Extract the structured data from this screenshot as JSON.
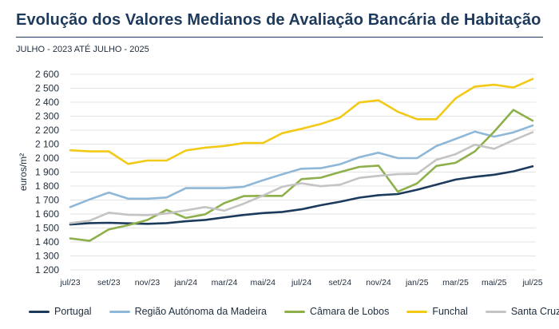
{
  "title": "Evolução dos Valores Medianos de Avaliação Bancária de Habitação",
  "subtitle": "JULHO - 2023 ATÉ JULHO - 2025",
  "chart_data": {
    "type": "line",
    "title": "Evolução dos Valores Medianos de Avaliação Bancária de Habitação",
    "subtitle": "JULHO - 2023 ATÉ JULHO - 2025",
    "xlabel": "",
    "ylabel": "euros/m²",
    "ylim": [
      1200,
      2600
    ],
    "yticks": [
      1200,
      1300,
      1400,
      1500,
      1600,
      1700,
      1800,
      1900,
      2000,
      2100,
      2200,
      2300,
      2400,
      2500,
      2600
    ],
    "ytick_labels": [
      "1 200",
      "1 300",
      "1 400",
      "1 500",
      "1 600",
      "1 700",
      "1 800",
      "1 900",
      "2 000",
      "2 100",
      "2 200",
      "2 300",
      "2 400",
      "2 500",
      "2 600"
    ],
    "grid": true,
    "legend": "bottom",
    "categories": [
      "jul/23",
      "ago/23",
      "set/23",
      "out/23",
      "nov/23",
      "dez/23",
      "jan/24",
      "fev/24",
      "mar/24",
      "abr/24",
      "mai/24",
      "jun/24",
      "jul/24",
      "ago/24",
      "set/24",
      "out/24",
      "nov/24",
      "dez/24",
      "jan/25",
      "fev/25",
      "mar/25",
      "abr/25",
      "mai/25",
      "jun/25",
      "jul/25"
    ],
    "xtick_labels": [
      "jul/23",
      "",
      "set/23",
      "",
      "nov/23",
      "",
      "jan/24",
      "",
      "mar/24",
      "",
      "mai/24",
      "",
      "jul/24",
      "",
      "set/24",
      "",
      "nov/24",
      "",
      "jan/25",
      "",
      "mar/25",
      "",
      "mai/25",
      "",
      "jul/25"
    ],
    "series": [
      {
        "name": "Portugal",
        "color": "#1b3a5c",
        "values": [
          1525,
          1535,
          1537,
          1533,
          1530,
          1535,
          1548,
          1558,
          1576,
          1593,
          1607,
          1615,
          1634,
          1663,
          1688,
          1717,
          1735,
          1743,
          1774,
          1810,
          1846,
          1866,
          1881,
          1905,
          1941
        ]
      },
      {
        "name": "Região Autónoma da Madeira",
        "color": "#8fb8d8",
        "values": [
          1650,
          1704,
          1754,
          1710,
          1710,
          1718,
          1785,
          1785,
          1785,
          1795,
          1842,
          1884,
          1924,
          1928,
          1956,
          2006,
          2039,
          2000,
          2000,
          2086,
          2137,
          2190,
          2154,
          2184,
          2234
        ]
      },
      {
        "name": "Câmara de Lobos",
        "color": "#8db04a",
        "values": [
          1425,
          1408,
          1490,
          1520,
          1557,
          1630,
          1572,
          1598,
          1678,
          1728,
          1730,
          1730,
          1850,
          1860,
          1900,
          1937,
          1946,
          1760,
          1819,
          1944,
          1966,
          2048,
          2189,
          2345,
          2268
        ]
      },
      {
        "name": "Funchal",
        "color": "#f2c914",
        "values": [
          2056,
          2048,
          2048,
          1958,
          1983,
          1983,
          2055,
          2075,
          2087,
          2108,
          2108,
          2178,
          2210,
          2244,
          2291,
          2398,
          2414,
          2332,
          2278,
          2278,
          2428,
          2512,
          2525,
          2505,
          2566
        ]
      },
      {
        "name": "Santa Cruz",
        "color": "#c4c4c4",
        "values": [
          1535,
          1552,
          1610,
          1595,
          1592,
          1604,
          1626,
          1650,
          1624,
          1674,
          1732,
          1795,
          1820,
          1799,
          1810,
          1858,
          1873,
          1885,
          1888,
          1988,
          2028,
          2096,
          2067,
          2128,
          2185
        ]
      }
    ]
  }
}
